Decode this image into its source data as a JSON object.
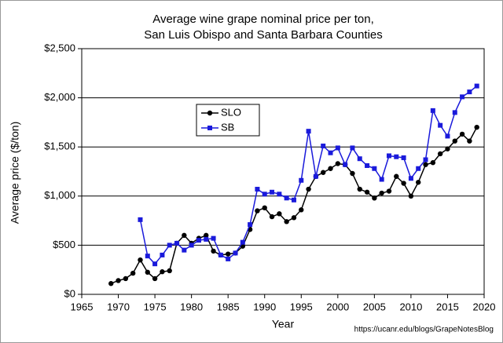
{
  "chart_data": {
    "type": "line",
    "title": [
      "Average wine grape nominal price per ton,",
      "San Luis Obispo and Santa Barbara Counties"
    ],
    "x_label": "Year",
    "y_label": "Average price ($/ton)",
    "source": "https://ucanr.edu/blogs/GrapeNotesBlog",
    "x": [
      1969,
      1970,
      1971,
      1972,
      1973,
      1974,
      1975,
      1976,
      1977,
      1978,
      1979,
      1980,
      1981,
      1982,
      1983,
      1984,
      1985,
      1986,
      1987,
      1988,
      1989,
      1990,
      1991,
      1992,
      1993,
      1994,
      1995,
      1996,
      1997,
      1998,
      1999,
      2000,
      2001,
      2002,
      2003,
      2004,
      2005,
      2006,
      2007,
      2008,
      2009,
      2010,
      2011,
      2012,
      2013,
      2014,
      2015,
      2016,
      2017,
      2018,
      2019
    ],
    "series": [
      {
        "name": "SLO",
        "color": "#000000",
        "marker": "circle",
        "values": [
          110,
          140,
          160,
          215,
          350,
          225,
          160,
          230,
          240,
          520,
          600,
          520,
          570,
          600,
          440,
          400,
          410,
          420,
          490,
          660,
          850,
          880,
          790,
          820,
          740,
          780,
          860,
          1070,
          1200,
          1240,
          1280,
          1330,
          1320,
          1230,
          1070,
          1040,
          980,
          1030,
          1050,
          1200,
          1130,
          1000,
          1140,
          1320,
          1340,
          1430,
          1480,
          1560,
          1630,
          1560,
          1700
        ]
      },
      {
        "name": "SB",
        "color": "#1a1adb",
        "marker": "square",
        "values": [
          null,
          null,
          null,
          null,
          760,
          390,
          310,
          400,
          500,
          520,
          450,
          500,
          550,
          560,
          570,
          400,
          360,
          420,
          530,
          710,
          1070,
          1020,
          1040,
          1020,
          980,
          960,
          1160,
          1660,
          1200,
          1510,
          1440,
          1490,
          1320,
          1490,
          1380,
          1310,
          1280,
          1170,
          1410,
          1400,
          1390,
          1180,
          1280,
          1370,
          1870,
          1720,
          1610,
          1850,
          2010,
          2060,
          2120
        ]
      }
    ],
    "xlim": [
      1965,
      2020
    ],
    "xticks": [
      1965,
      1970,
      1975,
      1980,
      1985,
      1990,
      1995,
      2000,
      2005,
      2010,
      2015,
      2020
    ],
    "ylim": [
      0,
      2500
    ],
    "yticks": [
      {
        "value": 0,
        "label": "$0"
      },
      {
        "value": 500,
        "label": "$500"
      },
      {
        "value": 1000,
        "label": "$1,000"
      },
      {
        "value": 1500,
        "label": "$1,500"
      },
      {
        "value": 2000,
        "label": "$2,000"
      },
      {
        "value": 2500,
        "label": "$2,500"
      }
    ],
    "grid": true,
    "legend": "upper-left"
  }
}
